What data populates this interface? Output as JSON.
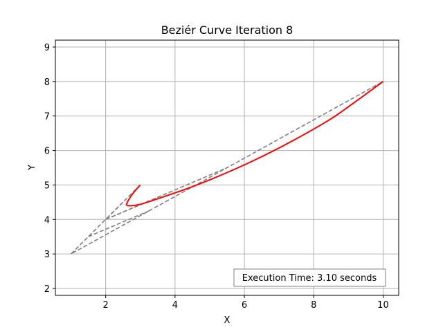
{
  "chart_data": {
    "type": "line",
    "title": "Beziér Curve Iteration 8",
    "xlabel": "X",
    "ylabel": "Y",
    "xlim": [
      0.55,
      10.45
    ],
    "ylim": [
      1.8,
      9.2
    ],
    "x_ticks": [
      2,
      4,
      6,
      8,
      10
    ],
    "y_ticks": [
      2,
      3,
      4,
      5,
      6,
      7,
      8,
      9
    ],
    "grid": true,
    "control_points": [
      [
        3,
        5
      ],
      [
        1,
        3
      ],
      [
        10,
        8
      ]
    ],
    "construction_lines": [
      {
        "color": "#808080",
        "style": "dashed",
        "points": [
          [
            3,
            5
          ],
          [
            1,
            3
          ],
          [
            10,
            8
          ]
        ]
      },
      {
        "color": "#808080",
        "style": "dashed",
        "points": [
          [
            2,
            4
          ],
          [
            5.5,
            5.5
          ]
        ]
      },
      {
        "color": "#808080",
        "style": "dashed",
        "points": [
          [
            2.5,
            4.5
          ],
          [
            2,
            4
          ],
          [
            3.75,
            4.75
          ]
        ]
      },
      {
        "color": "#808080",
        "style": "dashed",
        "points": [
          [
            1.5,
            3.5
          ],
          [
            3.25,
            4.25
          ]
        ]
      }
    ],
    "series": [
      {
        "color": "#ff0000",
        "points": [
          [
            3.0,
            5.0
          ],
          [
            2.84,
            4.82
          ],
          [
            2.72,
            4.66
          ],
          [
            2.64,
            4.53
          ],
          [
            2.6,
            4.43
          ],
          [
            2.61,
            4.42
          ],
          [
            2.65,
            4.4
          ],
          [
            2.75,
            4.4
          ],
          [
            3.0,
            4.44
          ],
          [
            3.5,
            4.6
          ],
          [
            4.5,
            4.95
          ],
          [
            5.5,
            5.36
          ],
          [
            6.5,
            5.82
          ],
          [
            7.5,
            6.34
          ],
          [
            8.5,
            6.92
          ],
          [
            9.25,
            7.45
          ],
          [
            10.0,
            8.0
          ]
        ]
      }
    ],
    "annotation": "Execution Time: 3.10 seconds"
  }
}
